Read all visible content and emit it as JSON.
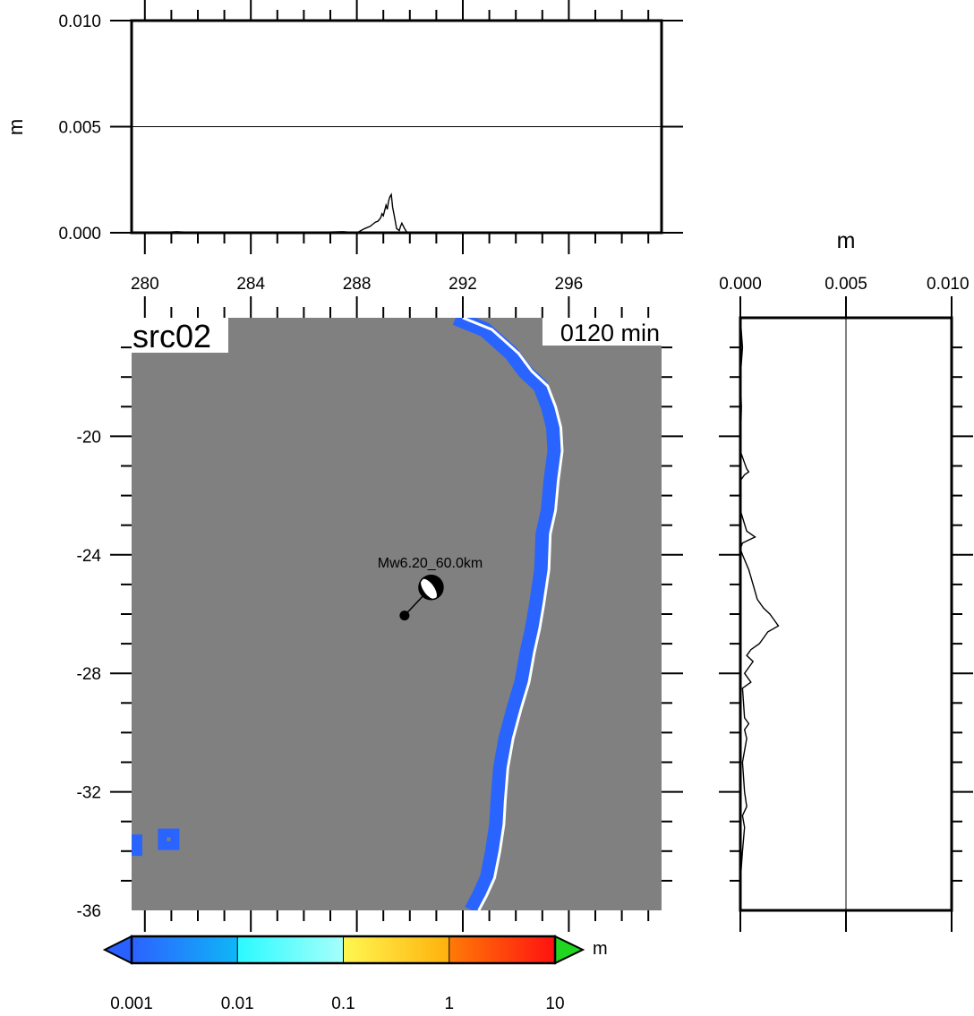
{
  "chart_data": [
    {
      "type": "line",
      "panel": "top-profile",
      "xlim": [
        279.5,
        299.5
      ],
      "ylim": [
        0,
        0.01
      ],
      "xticks": [
        280,
        284,
        288,
        292,
        296
      ],
      "xtick_labels": [
        "280",
        "284",
        "288",
        "292",
        "296"
      ],
      "yticks": [
        0.0,
        0.005,
        0.01
      ],
      "ytick_labels": [
        "0.000",
        "0.005",
        "0.010"
      ],
      "ylabel": "m",
      "grid": "horizontal at 0.005",
      "series": [
        {
          "x": [
            280.5,
            281.2,
            282.0,
            284.0,
            286.0,
            287.5,
            288.0,
            288.3,
            288.5,
            288.6,
            288.7,
            288.8,
            288.9,
            288.95,
            289.0,
            289.1,
            289.15,
            289.2,
            289.25,
            289.3,
            289.35,
            289.4,
            289.5,
            289.6,
            289.65,
            289.7,
            289.8,
            289.9,
            290.0,
            292.0,
            296.0,
            299.0
          ],
          "y": [
            0.0,
            5e-05,
            0.0,
            0.0,
            0.0,
            5e-05,
            0.0,
            0.0002,
            0.0003,
            0.0004,
            0.0005,
            0.00055,
            0.0007,
            0.0009,
            0.0008,
            0.0013,
            0.0011,
            0.0015,
            0.0017,
            0.0018,
            0.0012,
            0.0009,
            0.0002,
            0.0001,
            0.0003,
            0.00045,
            0.0002,
            0.0,
            0.0,
            0.0,
            0.0,
            0.0
          ]
        }
      ]
    },
    {
      "type": "line",
      "panel": "right-profile",
      "xlim": [
        0,
        0.01
      ],
      "ylim": [
        -36,
        -16
      ],
      "xticks": [
        0.0,
        0.005,
        0.01
      ],
      "xtick_labels": [
        "0.000",
        "0.005",
        "0.010"
      ],
      "xlabel": "m",
      "grid": "vertical at 0.005",
      "series": [
        {
          "lat": [
            -16.0,
            -17.0,
            -18.0,
            -19.0,
            -20.5,
            -20.9,
            -21.1,
            -21.2,
            -21.3,
            -21.5,
            -22.5,
            -23.2,
            -23.4,
            -23.5,
            -23.6,
            -23.8,
            -24.0,
            -24.5,
            -25.0,
            -25.5,
            -25.8,
            -26.0,
            -26.2,
            -26.4,
            -26.6,
            -26.8,
            -27.0,
            -27.2,
            -27.4,
            -27.6,
            -27.8,
            -28.0,
            -28.3,
            -28.5,
            -29.5,
            -29.7,
            -29.9,
            -30.2,
            -31.0,
            -32.0,
            -32.5,
            -32.8,
            -33.2,
            -34.0,
            -35.0,
            -36.0
          ],
          "value": [
            0.0,
            0.0001,
            0.0,
            5e-05,
            0.0,
            0.0002,
            0.0003,
            0.0004,
            0.0002,
            0.0,
            0.0,
            0.0003,
            0.0007,
            0.0004,
            0.0001,
            0.0,
            0.0001,
            0.0004,
            0.0006,
            0.0008,
            0.0011,
            0.0014,
            0.0016,
            0.0018,
            0.0013,
            0.0011,
            0.0009,
            0.0005,
            0.0003,
            0.0006,
            0.0004,
            0.0002,
            0.0005,
            0.0001,
            0.0002,
            0.0004,
            0.0002,
            0.0003,
            0.0001,
            0.0002,
            0.0003,
            0.0001,
            0.0002,
            0.0001,
            0.0,
            0.0
          ]
        }
      ]
    },
    {
      "type": "heatmap",
      "panel": "map",
      "xlim": [
        279.5,
        299.5
      ],
      "ylim": [
        -36,
        -16
      ],
      "yticks": [
        -20,
        -24,
        -28,
        -32,
        -36
      ],
      "ytick_labels": [
        "-20",
        "-24",
        "-28",
        "-32",
        "-36"
      ],
      "title_label": "src02",
      "time_label": "0120 min",
      "background_color": "#808080",
      "band_color": "#2a64ff",
      "coastline_color": "#ffffff",
      "coastline": {
        "lon": [
          292.0,
          293.1,
          294.1,
          294.6,
          295.2,
          295.5,
          295.7,
          295.75,
          295.6,
          295.5,
          295.3,
          295.25,
          295.05,
          294.9,
          294.7,
          294.5,
          294.2,
          293.9,
          293.7,
          293.6,
          293.55,
          293.4,
          293.2,
          292.9,
          292.6
        ],
        "lat": [
          -16.0,
          -16.4,
          -17.2,
          -17.8,
          -18.3,
          -19.0,
          -19.7,
          -20.5,
          -21.5,
          -22.5,
          -23.3,
          -24.5,
          -25.7,
          -26.5,
          -27.3,
          -28.3,
          -29.2,
          -30.2,
          -31.2,
          -32.3,
          -33.1,
          -34.0,
          -34.9,
          -35.5,
          -36.0
        ]
      },
      "islands": [
        {
          "lon": 280.9,
          "lat": -33.6
        },
        {
          "lon": 279.5,
          "lat": -33.8
        }
      ],
      "event": {
        "label": "Mw6.20_60.0km",
        "epicenter": {
          "lon": 289.8,
          "lat": -26.05
        },
        "beachball": {
          "lon": 290.8,
          "lat": -25.1
        }
      }
    },
    {
      "type": "colorbar",
      "tick_labels": [
        "0.001",
        "0.01",
        "0.1",
        "1",
        "10"
      ],
      "unit_label": "m",
      "scale": "log",
      "segments": [
        {
          "from": "#2c62ff",
          "to": "#0fb6f7"
        },
        {
          "from": "#2afaff",
          "to": "#a6fffb"
        },
        {
          "from": "#fff751",
          "to": "#ffb10c"
        },
        {
          "from": "#ff7b07",
          "to": "#ff1111"
        }
      ],
      "under_color": "#2861ff",
      "over_color": "#21d61e"
    }
  ]
}
